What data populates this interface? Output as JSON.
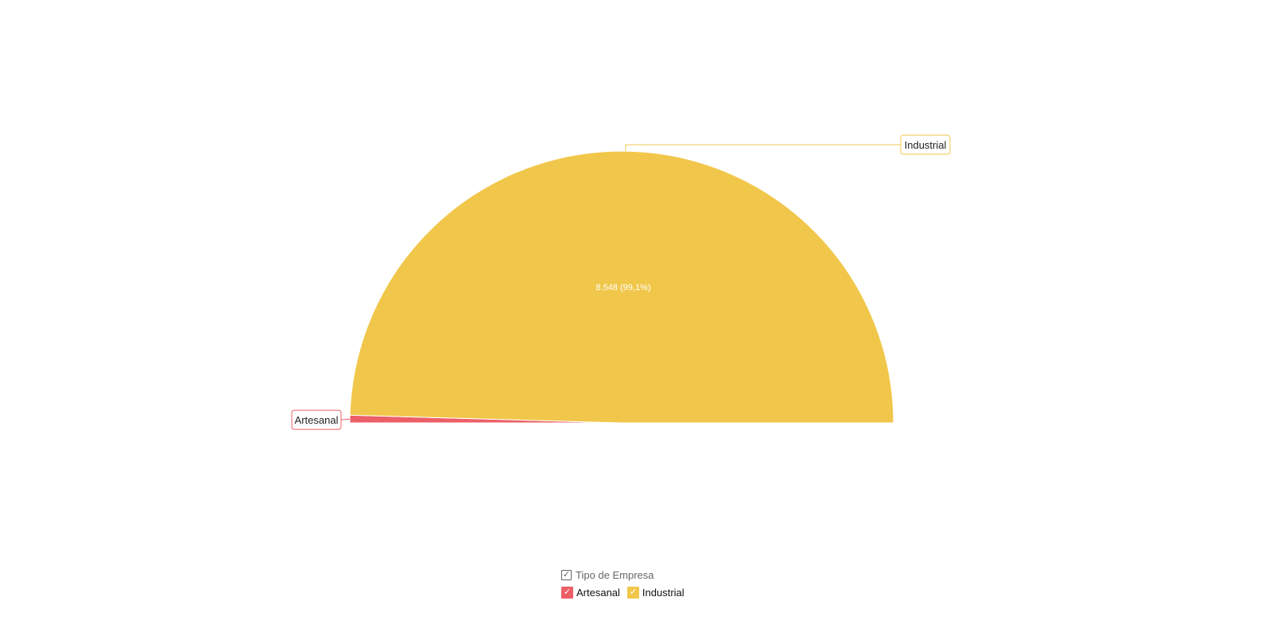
{
  "chart_data": {
    "type": "pie",
    "variant": "semicircle",
    "title": "",
    "categories": [
      "Artesanal",
      "Industrial"
    ],
    "values": [
      78,
      8548
    ],
    "colors": [
      "#ec5f67",
      "#f1c74b"
    ],
    "data_labels": {
      "Industrial": "8.548 (99,1%)"
    },
    "legend": {
      "title": "Tipo de Empresa",
      "placement": "bottom-center",
      "items": [
        {
          "label": "Artesanal",
          "color": "#ec5f67",
          "checked": true
        },
        {
          "label": "Industrial",
          "color": "#f1c74b",
          "checked": true
        }
      ]
    }
  },
  "legend_check_glyph": "✓"
}
